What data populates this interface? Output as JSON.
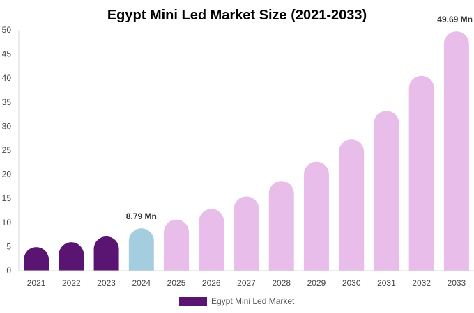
{
  "chart_data": {
    "type": "bar",
    "title": "Egypt Mini Led Market Size (2021-2033)",
    "xlabel": "",
    "ylabel": "",
    "categories": [
      "2021",
      "2022",
      "2023",
      "2024",
      "2025",
      "2026",
      "2027",
      "2028",
      "2029",
      "2030",
      "2031",
      "2032",
      "2033"
    ],
    "series": [
      {
        "name": "Egypt Mini Led Market",
        "values": [
          4.9,
          5.9,
          7.1,
          8.79,
          10.6,
          12.8,
          15.4,
          18.6,
          22.6,
          27.3,
          33.2,
          40.5,
          49.69
        ]
      }
    ],
    "ylim": [
      0,
      50
    ],
    "yticks": [
      0,
      5,
      10,
      15,
      20,
      25,
      30,
      35,
      40,
      45,
      50
    ],
    "data_labels": [
      {
        "index": 3,
        "text": "8.79 Mn"
      },
      {
        "index": 12,
        "text": "49.69 Mn"
      }
    ],
    "colors": {
      "historical": "#5a1472",
      "base_year": "#a5cde0",
      "forecast": "#e8bde9",
      "legend_swatch": "#5a1472"
    },
    "color_groups": [
      "historical",
      "historical",
      "historical",
      "base_year",
      "forecast",
      "forecast",
      "forecast",
      "forecast",
      "forecast",
      "forecast",
      "forecast",
      "forecast",
      "forecast"
    ],
    "grid": false,
    "legend": {
      "position": "bottom",
      "label": "Egypt Mini Led Market"
    }
  }
}
